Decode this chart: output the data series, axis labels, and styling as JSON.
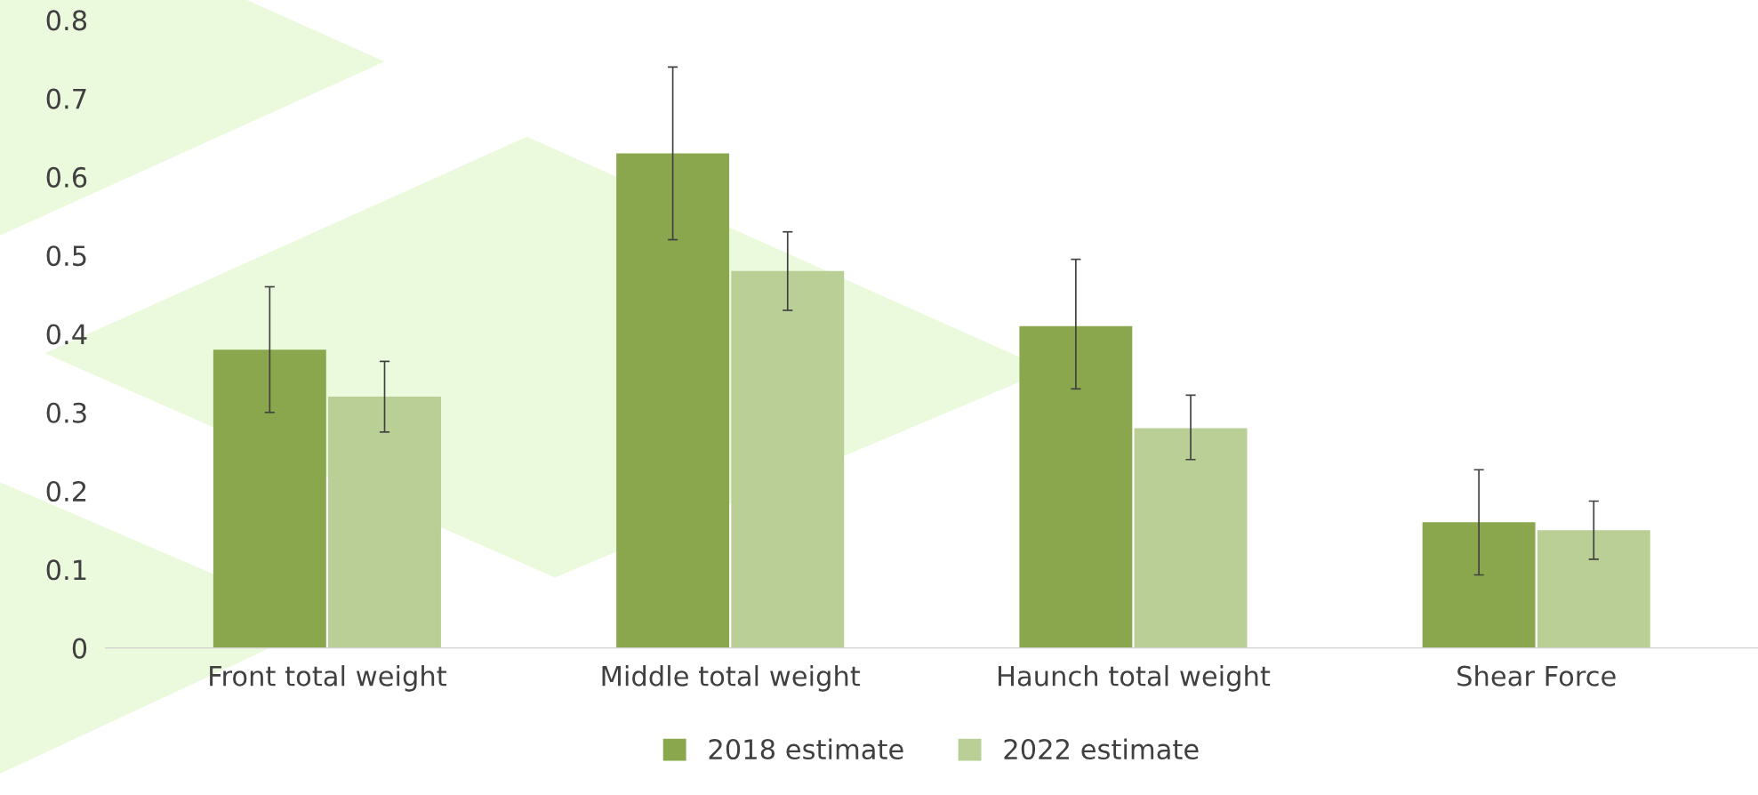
{
  "chart_data": {
    "type": "bar",
    "categories": [
      "Front total weight",
      "Middle total weight",
      "Haunch total weight",
      "Shear Force"
    ],
    "series": [
      {
        "name": "2018 estimate",
        "color": "#8aa74e",
        "values": [
          0.38,
          0.63,
          0.41,
          0.16
        ],
        "errors": [
          [
            0.3,
            0.46
          ],
          [
            0.52,
            0.74
          ],
          [
            0.33,
            0.495
          ],
          [
            0.093,
            0.227
          ]
        ]
      },
      {
        "name": "2022 estimate",
        "color": "#b9cf96",
        "values": [
          0.32,
          0.48,
          0.28,
          0.15
        ],
        "errors": [
          [
            0.275,
            0.365
          ],
          [
            0.43,
            0.53
          ],
          [
            0.24,
            0.322
          ],
          [
            0.113,
            0.187
          ]
        ]
      }
    ],
    "ylim": [
      0,
      0.8
    ],
    "yticks": [
      {
        "value": 0,
        "label": "0"
      },
      0.1,
      0.2,
      0.3,
      0.4,
      0.5,
      0.6,
      0.7,
      0.8
    ],
    "grid": false,
    "legend": "bottom"
  }
}
